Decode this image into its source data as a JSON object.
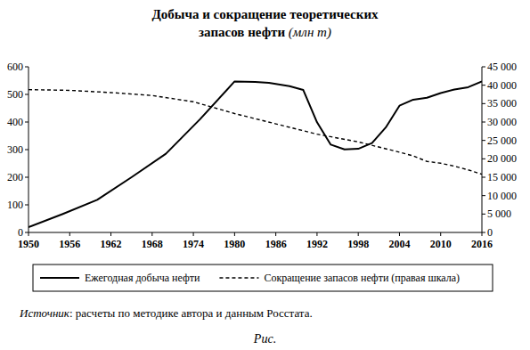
{
  "chart_data": {
    "type": "line",
    "title": "Добыча и сокращение теоретических запасов нефти (млн т)",
    "xlim": [
      1950,
      2016
    ],
    "xticks": [
      1950,
      1956,
      1962,
      1968,
      1974,
      1980,
      1986,
      1992,
      1998,
      2004,
      2010,
      2016
    ],
    "ylim": [
      0,
      600
    ],
    "yticks": [
      0,
      100,
      200,
      300,
      400,
      500,
      600
    ],
    "y2lim": [
      0,
      45000
    ],
    "y2ticks": [
      0,
      {
        "value": 5000,
        "label": "5 000"
      },
      {
        "value": 10000,
        "label": "10 000"
      },
      {
        "value": 15000,
        "label": "15 000"
      },
      {
        "value": 20000,
        "label": "20 000"
      },
      {
        "value": 25000,
        "label": "25 000"
      },
      {
        "value": 30000,
        "label": "30 000"
      },
      {
        "value": 35000,
        "label": "35 000"
      },
      {
        "value": 40000,
        "label": "40 000"
      },
      {
        "value": 45000,
        "label": "45 000"
      }
    ],
    "grid": false,
    "legend": "bottom",
    "series": [
      {
        "name": "Ежегодная добыча нефти",
        "color": "#000000",
        "line_style": "solid",
        "x": [
          1950,
          1955,
          1960,
          1965,
          1970,
          1975,
          1980,
          1983,
          1985,
          1988,
          1990,
          1992,
          1994,
          1996,
          1998,
          2000,
          2002,
          2004,
          2006,
          2008,
          2010,
          2012,
          2014,
          2016
        ],
        "values": [
          19,
          67,
          118,
          200,
          285,
          411,
          547,
          545,
          542,
          530,
          516,
          399,
          318,
          301,
          303,
          324,
          380,
          459,
          481,
          488,
          505,
          518,
          526,
          547
        ]
      },
      {
        "name": "Сокращение запасов нефти (правая шкала)",
        "color": "#000000",
        "line_style": "dashed",
        "axis": "y2",
        "x": [
          1950,
          1956,
          1962,
          1968,
          1974,
          1980,
          1986,
          1992,
          1998,
          2004,
          2006,
          2008,
          2010,
          2012,
          2014,
          2016
        ],
        "values": [
          38800,
          38600,
          38000,
          37200,
          35500,
          32300,
          29500,
          26700,
          24600,
          21800,
          20800,
          19300,
          18800,
          18000,
          17000,
          15800
        ]
      }
    ],
    "annotations": [
      "Источник: расчеты по методике автора и данным Росстата.",
      "Рис."
    ]
  }
}
